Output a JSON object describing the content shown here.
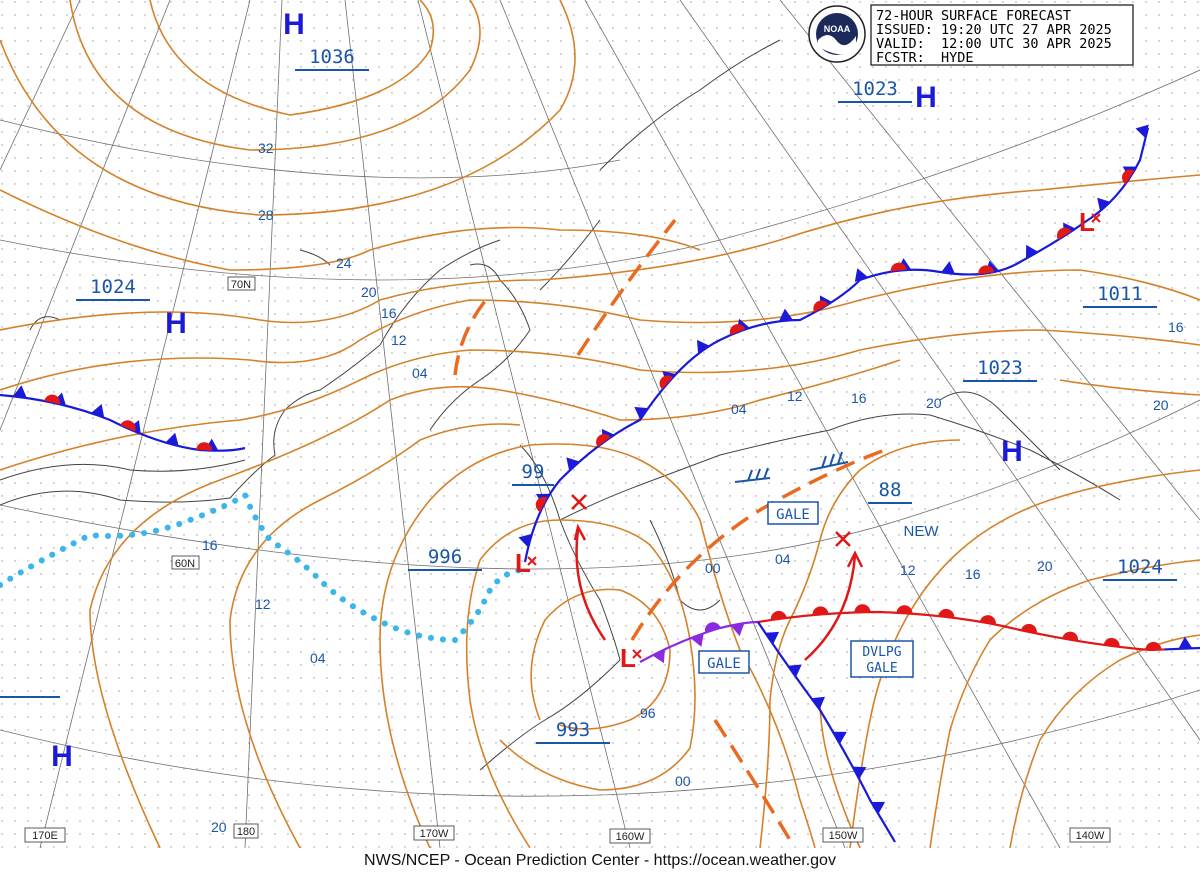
{
  "header": {
    "line1": "72-HOUR SURFACE FORECAST",
    "line2": "ISSUED: 19:20 UTC 27 APR 2025",
    "line3": "VALID:  12:00 UTC 30 APR 2025",
    "line4": "FCSTR:  HYDE"
  },
  "footer": "NWS/NCEP - Ocean Prediction Center - https://ocean.weather.gov",
  "logo": {
    "name": "noaa-logo",
    "text": "NOAA"
  },
  "colors": {
    "isobar": "#d4822a",
    "warm": "#e01818",
    "cold": "#1a1ad8",
    "occluded": "#8a2be2",
    "ice": "#39b6ea",
    "label": "#1a56a8",
    "high": "#1a1ad8",
    "grid": "#777777",
    "coast": "#444444"
  },
  "pressure_centers": [
    {
      "type": "H",
      "value": "1036"
    },
    {
      "type": "H",
      "value": "1023"
    },
    {
      "type": "H",
      "value": "1024"
    },
    {
      "type": "H",
      "value": ""
    },
    {
      "type": "H",
      "value": "1024"
    },
    {
      "type": "H",
      "value": ""
    },
    {
      "type": "H",
      "value": "1023"
    },
    {
      "type": "L",
      "value": "996"
    },
    {
      "type": "L",
      "value": "993"
    },
    {
      "type": "L",
      "value": "1011"
    }
  ],
  "center_values": {
    "low_99": "99",
    "low_88": "88",
    "new": "NEW"
  },
  "isobar_labels": [
    "32",
    "28",
    "24",
    "20",
    "16",
    "12",
    "04",
    "16",
    "12",
    "04",
    "00",
    "96",
    "00",
    "04",
    "12",
    "16",
    "20",
    "04",
    "12",
    "16",
    "20",
    "16",
    "20",
    "20"
  ],
  "warning_boxes": [
    "GALE",
    "GALE",
    "DVLPG",
    "GALE"
  ],
  "lat_labels": [
    "70N",
    "60N"
  ],
  "lon_labels": [
    "170E",
    "180",
    "170W",
    "160W",
    "150W",
    "140W"
  ]
}
